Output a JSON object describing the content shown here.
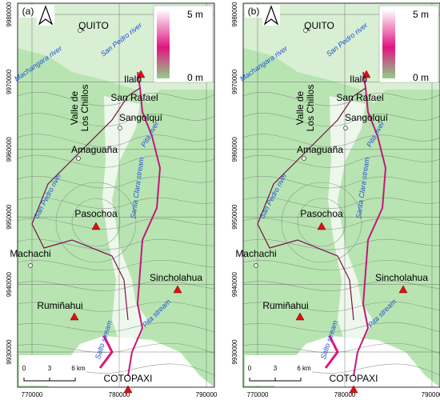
{
  "panels": [
    {
      "label": "(a)"
    },
    {
      "label": "(b)"
    }
  ],
  "places": [
    "QUITO",
    "Ilaló",
    "San Rafael",
    "Valle de\nLos Chillos",
    "Sangolquí",
    "Amaguaña",
    "Pasochoa",
    "Machachi",
    "Sincholahua",
    "Rumiñahui",
    "COTOPAXI"
  ],
  "rivers": [
    "Machangara river",
    "San Pedro river",
    "Pita river",
    "Santa Clara stream",
    "San Pedro river",
    "Pita stream",
    "Salto stream"
  ],
  "legend": {
    "max": "5 m",
    "min": "0 m"
  },
  "scale_bar": [
    "0",
    "3",
    "6 km"
  ],
  "xticks": [
    770000,
    780000,
    790000
  ],
  "yticks": [
    9930000,
    9940000,
    9950000,
    9960000,
    9970000,
    9980000
  ]
}
